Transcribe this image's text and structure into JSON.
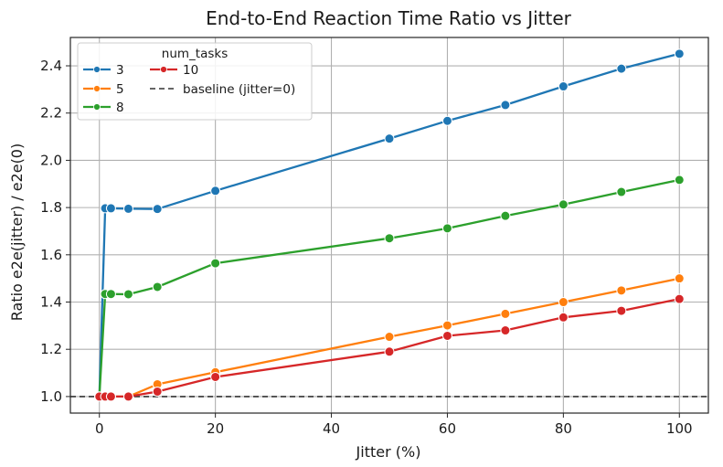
{
  "chart_data": {
    "type": "line",
    "title": "End-to-End Reaction Time Ratio vs Jitter",
    "xlabel": "Jitter (%)",
    "ylabel": "Ratio  e2e(jitter) / e2e(0)",
    "xlim": [
      -5,
      105
    ],
    "ylim": [
      0.93,
      2.52
    ],
    "xticks": [
      0,
      20,
      40,
      60,
      80,
      100
    ],
    "yticks": [
      1.0,
      1.2,
      1.4,
      1.6,
      1.8,
      2.0,
      2.2,
      2.4
    ],
    "grid": true,
    "legend": {
      "title": "num_tasks",
      "placement": "top-left",
      "columns": 2
    },
    "series": [
      {
        "name": "3",
        "color": "#1f77b4",
        "x": [
          0,
          1,
          2,
          5,
          10,
          20,
          50,
          60,
          70,
          80,
          90,
          100
        ],
        "y": [
          1.0,
          1.797,
          1.797,
          1.795,
          1.794,
          1.871,
          2.092,
          2.167,
          2.234,
          2.313,
          2.388,
          2.451
        ]
      },
      {
        "name": "5",
        "color": "#ff7f0e",
        "x": [
          0,
          1,
          2,
          5,
          10,
          20,
          50,
          60,
          70,
          80,
          90,
          100
        ],
        "y": [
          1.0,
          1.0,
          1.0,
          1.0,
          1.052,
          1.103,
          1.253,
          1.301,
          1.35,
          1.4,
          1.449,
          1.5
        ]
      },
      {
        "name": "8",
        "color": "#2ca02c",
        "x": [
          0,
          1,
          2,
          5,
          10,
          20,
          50,
          60,
          70,
          80,
          90,
          100
        ],
        "y": [
          1.0,
          1.434,
          1.434,
          1.433,
          1.464,
          1.564,
          1.67,
          1.712,
          1.765,
          1.813,
          1.866,
          1.917
        ]
      },
      {
        "name": "10",
        "color": "#d62728",
        "x": [
          0,
          1,
          2,
          5,
          10,
          20,
          50,
          60,
          70,
          80,
          90,
          100
        ],
        "y": [
          1.0,
          1.0,
          1.0,
          1.0,
          1.021,
          1.083,
          1.19,
          1.257,
          1.28,
          1.335,
          1.363,
          1.413
        ]
      }
    ],
    "baseline": {
      "name": "baseline (jitter=0)",
      "y": 1.0,
      "color": "#333333"
    }
  }
}
